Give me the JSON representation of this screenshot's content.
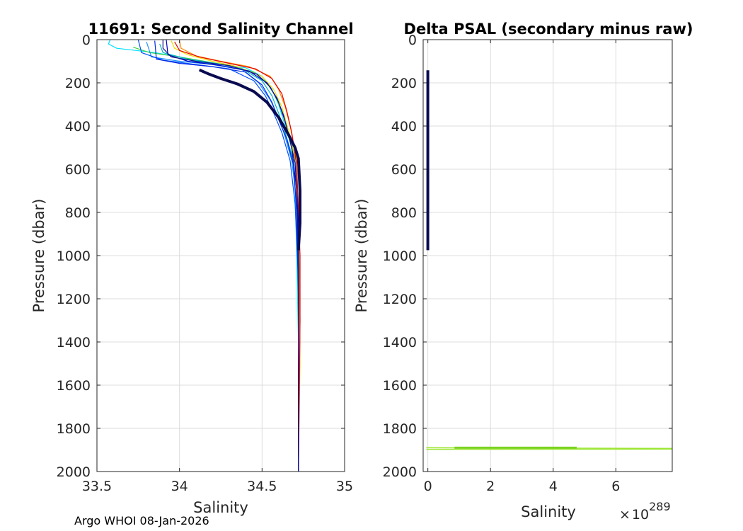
{
  "footer": "Argo WHOI 08-Jan-2026",
  "chart_data": [
    {
      "type": "line",
      "title": "11691: Second Salinity Channel",
      "xlabel": "Salinity",
      "ylabel": "Pressure (dbar)",
      "xlim": [
        33.5,
        35
      ],
      "ylim": [
        0,
        2000
      ],
      "y_reversed": true,
      "grid": true,
      "xticks": [
        33.5,
        34,
        34.5,
        35
      ],
      "xticklabels": [
        "33.5",
        "34",
        "34.5",
        "35"
      ],
      "yticks": [
        0,
        200,
        400,
        600,
        800,
        1000,
        1200,
        1400,
        1600,
        1800,
        2000
      ],
      "yticklabels": [
        "0",
        "200",
        "400",
        "600",
        "800",
        "1000",
        "1200",
        "1400",
        "1600",
        "1800",
        "2000"
      ],
      "series": [
        {
          "name": "profile-cyan-fresh",
          "color": "#00e0ff",
          "width": 1.2,
          "points": [
            [
              33.58,
              0
            ],
            [
              33.57,
              20
            ],
            [
              33.62,
              40
            ],
            [
              33.85,
              60
            ],
            [
              34.0,
              80
            ],
            [
              34.05,
              100
            ],
            [
              34.25,
              115
            ],
            [
              34.4,
              130
            ],
            [
              34.5,
              170
            ],
            [
              34.56,
              230
            ],
            [
              34.6,
              300
            ],
            [
              34.64,
              400
            ],
            [
              34.68,
              500
            ],
            [
              34.7,
              700
            ],
            [
              34.71,
              1000
            ],
            [
              34.72,
              1400
            ],
            [
              34.72,
              2000
            ]
          ]
        },
        {
          "name": "profile-green",
          "color": "#3cd23c",
          "width": 1.2,
          "points": [
            [
              33.72,
              35
            ],
            [
              33.82,
              60
            ],
            [
              34.0,
              80
            ],
            [
              34.15,
              100
            ],
            [
              34.3,
              120
            ],
            [
              34.45,
              150
            ],
            [
              34.53,
              200
            ],
            [
              34.58,
              260
            ],
            [
              34.62,
              330
            ],
            [
              34.66,
              420
            ],
            [
              34.7,
              550
            ],
            [
              34.72,
              800
            ],
            [
              34.73,
              1300
            ],
            [
              34.72,
              2000
            ]
          ]
        },
        {
          "name": "profile-yellow",
          "color": "#f0dc00",
          "width": 1.2,
          "points": [
            [
              33.95,
              5
            ],
            [
              33.97,
              40
            ],
            [
              34.05,
              70
            ],
            [
              34.2,
              100
            ],
            [
              34.35,
              125
            ],
            [
              34.5,
              170
            ],
            [
              34.57,
              230
            ],
            [
              34.62,
              310
            ],
            [
              34.66,
              420
            ],
            [
              34.7,
              560
            ],
            [
              34.72,
              900
            ],
            [
              34.73,
              1500
            ],
            [
              34.72,
              2000
            ]
          ]
        },
        {
          "name": "profile-orange",
          "color": "#ff8c00",
          "width": 1.2,
          "points": [
            [
              34.0,
              5
            ],
            [
              34.01,
              40
            ],
            [
              34.1,
              75
            ],
            [
              34.25,
              100
            ],
            [
              34.42,
              125
            ],
            [
              34.55,
              170
            ],
            [
              34.6,
              230
            ],
            [
              34.64,
              310
            ],
            [
              34.67,
              400
            ],
            [
              34.71,
              560
            ],
            [
              34.72,
              900
            ],
            [
              34.73,
              1400
            ],
            [
              34.72,
              2000
            ]
          ]
        },
        {
          "name": "profile-red",
          "color": "#e60000",
          "width": 1.2,
          "points": [
            [
              33.97,
              10
            ],
            [
              34.0,
              50
            ],
            [
              34.12,
              80
            ],
            [
              34.3,
              110
            ],
            [
              34.46,
              135
            ],
            [
              34.56,
              180
            ],
            [
              34.62,
              250
            ],
            [
              34.65,
              330
            ],
            [
              34.68,
              430
            ],
            [
              34.71,
              580
            ],
            [
              34.73,
              1000
            ],
            [
              34.73,
              1300
            ],
            [
              34.72,
              2000
            ]
          ]
        },
        {
          "name": "profile-teal",
          "color": "#00b4c8",
          "width": 1.2,
          "points": [
            [
              33.88,
              20
            ],
            [
              33.9,
              60
            ],
            [
              34.05,
              90
            ],
            [
              34.22,
              110
            ],
            [
              34.38,
              135
            ],
            [
              34.5,
              190
            ],
            [
              34.56,
              260
            ],
            [
              34.6,
              340
            ],
            [
              34.64,
              430
            ],
            [
              34.69,
              560
            ],
            [
              34.71,
              800
            ],
            [
              34.72,
              1200
            ],
            [
              34.72,
              2000
            ]
          ]
        },
        {
          "name": "profile-sky",
          "color": "#1e90ff",
          "width": 1.2,
          "points": [
            [
              33.8,
              10
            ],
            [
              33.83,
              80
            ],
            [
              34.0,
              100
            ],
            [
              34.2,
              115
            ],
            [
              34.38,
              140
            ],
            [
              34.48,
              200
            ],
            [
              34.55,
              280
            ],
            [
              34.6,
              360
            ],
            [
              34.64,
              450
            ],
            [
              34.68,
              560
            ],
            [
              34.71,
              750
            ],
            [
              34.72,
              1100
            ],
            [
              34.72,
              2000
            ]
          ]
        },
        {
          "name": "profile-blue-a",
          "color": "#0050ff",
          "width": 1.2,
          "points": [
            [
              33.75,
              0
            ],
            [
              33.77,
              60
            ],
            [
              33.9,
              95
            ],
            [
              34.1,
              115
            ],
            [
              34.3,
              135
            ],
            [
              34.45,
              190
            ],
            [
              34.52,
              260
            ],
            [
              34.57,
              340
            ],
            [
              34.62,
              430
            ],
            [
              34.67,
              560
            ],
            [
              34.7,
              760
            ],
            [
              34.72,
              1100
            ],
            [
              34.72,
              2000
            ]
          ]
        },
        {
          "name": "profile-blue-b",
          "color": "#0028e6",
          "width": 1.2,
          "points": [
            [
              33.85,
              5
            ],
            [
              33.86,
              90
            ],
            [
              34.0,
              110
            ],
            [
              34.2,
              125
            ],
            [
              34.4,
              150
            ],
            [
              34.5,
              210
            ],
            [
              34.56,
              290
            ],
            [
              34.6,
              370
            ],
            [
              34.65,
              460
            ],
            [
              34.69,
              580
            ],
            [
              34.71,
              800
            ],
            [
              34.72,
              1200
            ],
            [
              34.72,
              2000
            ]
          ]
        },
        {
          "name": "profile-blue-c",
          "color": "#0000cd",
          "width": 1.2,
          "points": [
            [
              33.92,
              0
            ],
            [
              33.93,
              70
            ],
            [
              34.05,
              100
            ],
            [
              34.25,
              120
            ],
            [
              34.42,
              145
            ],
            [
              34.53,
              200
            ],
            [
              34.59,
              270
            ],
            [
              34.63,
              350
            ],
            [
              34.66,
              440
            ],
            [
              34.7,
              570
            ],
            [
              34.72,
              850
            ],
            [
              34.72,
              1300
            ],
            [
              34.72,
              2000
            ]
          ]
        },
        {
          "name": "profile-navy-thin",
          "color": "#14148c",
          "width": 1.2,
          "points": [
            [
              33.9,
              0
            ],
            [
              33.9,
              40
            ],
            [
              33.95,
              80
            ],
            [
              34.1,
              100
            ],
            [
              34.3,
              120
            ],
            [
              34.47,
              160
            ],
            [
              34.55,
              220
            ],
            [
              34.6,
              290
            ],
            [
              34.64,
              380
            ],
            [
              34.68,
              500
            ],
            [
              34.71,
              700
            ],
            [
              34.72,
              1000
            ],
            [
              34.72,
              2000
            ]
          ]
        },
        {
          "name": "profile-secondary-channel",
          "color": "#0a0a50",
          "width": 4,
          "points": [
            [
              34.12,
              140
            ],
            [
              34.18,
              160
            ],
            [
              34.25,
              180
            ],
            [
              34.35,
              205
            ],
            [
              34.45,
              240
            ],
            [
              34.53,
              290
            ],
            [
              34.6,
              360
            ],
            [
              34.66,
              440
            ],
            [
              34.7,
              500
            ],
            [
              34.72,
              550
            ],
            [
              34.73,
              700
            ],
            [
              34.73,
              850
            ],
            [
              34.72,
              975
            ]
          ]
        }
      ]
    },
    {
      "type": "line",
      "title": "Delta PSAL (secondary minus raw)",
      "xlabel": "Salinity",
      "ylabel": "Pressure (dbar)",
      "x_exponent_label": "10",
      "x_exponent": "289",
      "x_exponent_prefix": "×",
      "xlim": [
        -0.15,
        7.8
      ],
      "ylim": [
        0,
        2000
      ],
      "y_reversed": true,
      "grid": true,
      "xticks": [
        0,
        2,
        4,
        6
      ],
      "xticklabels": [
        "0",
        "2",
        "4",
        "6"
      ],
      "yticks": [
        0,
        200,
        400,
        600,
        800,
        1000,
        1200,
        1400,
        1600,
        1800,
        2000
      ],
      "yticklabels": [
        "0",
        "200",
        "400",
        "600",
        "800",
        "1000",
        "1200",
        "1400",
        "1600",
        "1800",
        "2000"
      ],
      "series": [
        {
          "name": "delta-secondary-channel",
          "color": "#0a0a50",
          "width": 4,
          "points": [
            [
              0,
              142
            ],
            [
              0,
              975
            ]
          ]
        },
        {
          "name": "delta-outlier-a",
          "color": "#9be632",
          "width": 1.5,
          "points": [
            [
              -0.05,
              1890
            ],
            [
              7.8,
              1893
            ]
          ]
        },
        {
          "name": "delta-outlier-b",
          "color": "#9be632",
          "width": 1.5,
          "points": [
            [
              -0.05,
              1897
            ],
            [
              7.8,
              1896
            ]
          ]
        },
        {
          "name": "delta-outlier-c",
          "color": "#7ad21e",
          "width": 3,
          "points": [
            [
              0.85,
              1890
            ],
            [
              4.75,
              1890
            ]
          ]
        }
      ]
    }
  ]
}
